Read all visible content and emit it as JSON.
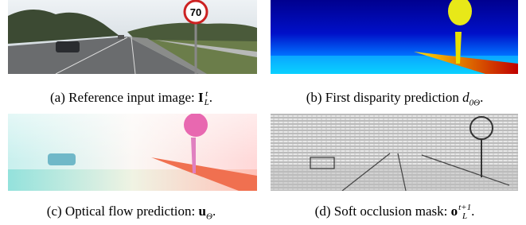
{
  "panels": [
    {
      "caption": {
        "text": "(a) Reference input image:",
        "symbol": "I",
        "subscript": "L",
        "superscript": "t",
        "end": "."
      },
      "sign_text": "70"
    },
    {
      "caption": {
        "text": "(b) First disparity prediction",
        "symbol": "d",
        "subscript": "0Θ",
        "end": "."
      }
    },
    {
      "caption": {
        "text": "(c) Optical flow prediction:",
        "symbol": "u",
        "subscript": "Θ",
        "end": "."
      }
    },
    {
      "caption": {
        "text": "(d) Soft occlusion mask:",
        "symbol": "o",
        "subscript": "L",
        "superscript": "t+1",
        "end": "."
      }
    }
  ]
}
